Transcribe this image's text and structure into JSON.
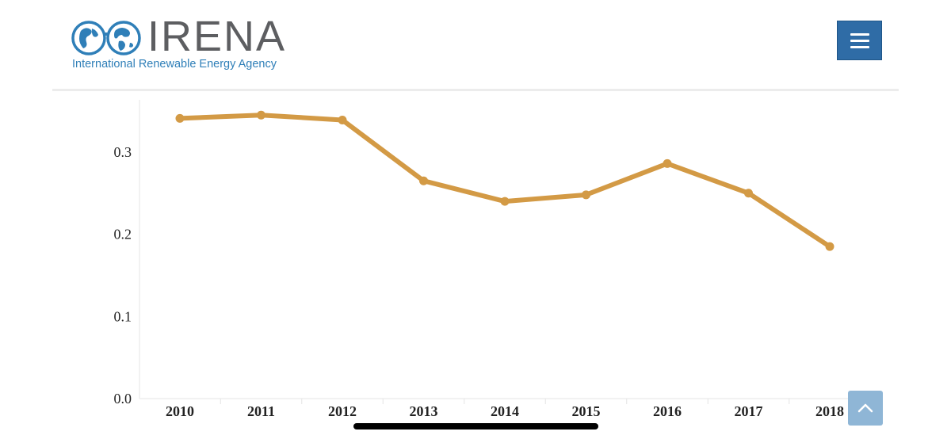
{
  "header": {
    "logo_word": "IRENA",
    "logo_subtitle": "International Renewable Energy Agency",
    "menu_icon": "hamburger-menu-icon"
  },
  "scroll_top_icon": "chevron-up-icon",
  "colors": {
    "brand_blue": "#2f6ca6",
    "logo_text_grey": "#5d5e61",
    "series_line": "#d39a45",
    "scroll_top_button": "#8fb6d6"
  },
  "chart_data": {
    "type": "line",
    "title": "",
    "xlabel": "",
    "ylabel": "",
    "categories": [
      "2010",
      "2011",
      "2012",
      "2013",
      "2014",
      "2015",
      "2016",
      "2017",
      "2018"
    ],
    "series": [
      {
        "values": [
          0.341,
          0.345,
          0.339,
          0.265,
          0.24,
          0.248,
          0.286,
          0.25,
          0.185
        ],
        "color": "#d39a45"
      }
    ],
    "y_ticks": [
      "0.0",
      "0.1",
      "0.2",
      "0.3"
    ],
    "ylim": [
      0,
      0.36
    ],
    "grid": false,
    "legend": "none"
  }
}
